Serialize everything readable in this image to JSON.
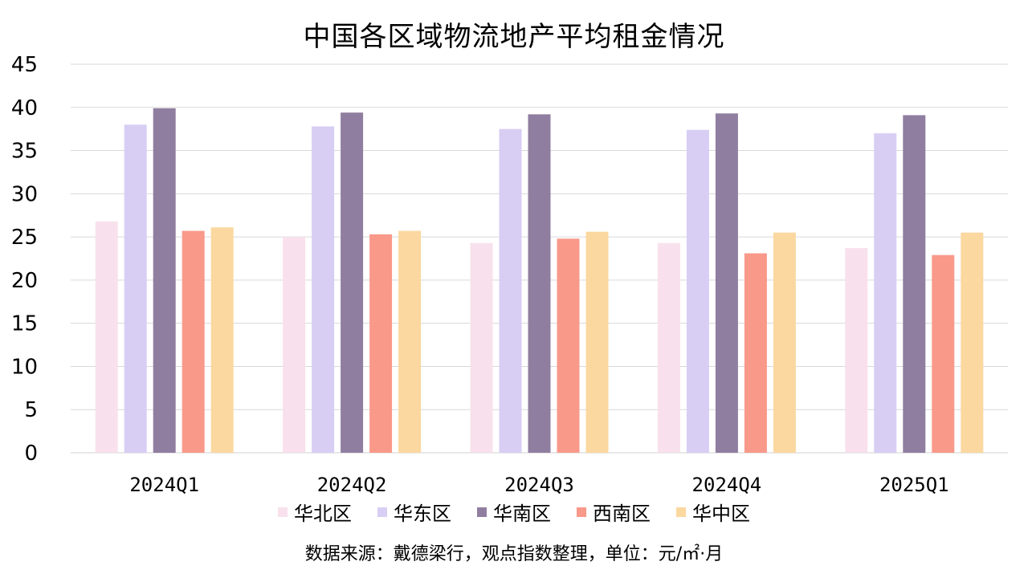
{
  "chart_data": {
    "type": "bar",
    "title": "中国各区域物流地产平均租金情况",
    "categories": [
      "2024Q1",
      "2024Q2",
      "2024Q3",
      "2024Q4",
      "2025Q1"
    ],
    "series": [
      {
        "name": "华北区",
        "color": "#F8E1EC",
        "values": [
          26.8,
          25.0,
          24.3,
          24.3,
          23.7
        ]
      },
      {
        "name": "华东区",
        "color": "#D8CEF4",
        "values": [
          38.0,
          37.8,
          37.5,
          37.4,
          37.0
        ]
      },
      {
        "name": "华南区",
        "color": "#907EA0",
        "values": [
          39.9,
          39.4,
          39.2,
          39.3,
          39.1
        ]
      },
      {
        "name": "西南区",
        "color": "#F9998A",
        "values": [
          25.7,
          25.3,
          24.8,
          23.1,
          22.9
        ]
      },
      {
        "name": "华中区",
        "color": "#FBD8A0",
        "values": [
          26.1,
          25.7,
          25.6,
          25.5,
          25.5
        ]
      }
    ],
    "ylim": [
      0,
      45
    ],
    "yticks": [
      0,
      5,
      10,
      15,
      20,
      25,
      30,
      35,
      40,
      45
    ],
    "grid": true,
    "legend_position": "bottom",
    "source_note": "数据来源：戴德梁行，观点指数整理，单位：元/㎡·月"
  }
}
